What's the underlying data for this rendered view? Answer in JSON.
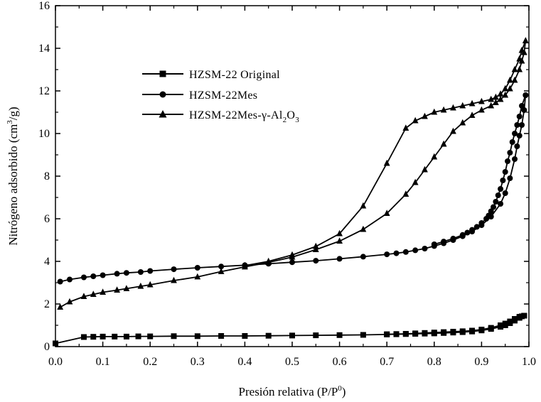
{
  "chart_data": {
    "type": "line",
    "xlabel": "Presión relativa (P/P",
    "xlabel_sup": "0",
    "xlabel_end": ")",
    "ylabel": "Nitrógeno adsorbido (cm",
    "ylabel_sup": "3",
    "ylabel_end": "/g)",
    "xlim": [
      0.0,
      1.0
    ],
    "ylim": [
      0,
      16
    ],
    "xticks": [
      "0.0",
      "0.1",
      "0.2",
      "0.3",
      "0.4",
      "0.5",
      "0.6",
      "0.7",
      "0.8",
      "0.9",
      "1.0"
    ],
    "yticks": [
      "0",
      "2",
      "4",
      "6",
      "8",
      "10",
      "12",
      "14",
      "16"
    ],
    "legend_position": "upper-left",
    "series": [
      {
        "name": "HZSM-22 Original",
        "legend_parts": [
          "HZSM-22 Original"
        ],
        "marker": "square",
        "adsorption": [
          [
            0.0,
            0.15
          ],
          [
            0.06,
            0.45
          ],
          [
            0.08,
            0.46
          ],
          [
            0.1,
            0.47
          ],
          [
            0.125,
            0.47
          ],
          [
            0.15,
            0.47
          ],
          [
            0.175,
            0.48
          ],
          [
            0.2,
            0.48
          ],
          [
            0.25,
            0.49
          ],
          [
            0.3,
            0.49
          ],
          [
            0.35,
            0.5
          ],
          [
            0.4,
            0.5
          ],
          [
            0.45,
            0.51
          ],
          [
            0.5,
            0.52
          ],
          [
            0.55,
            0.53
          ],
          [
            0.6,
            0.54
          ],
          [
            0.65,
            0.55
          ],
          [
            0.7,
            0.57
          ],
          [
            0.72,
            0.58
          ],
          [
            0.74,
            0.59
          ],
          [
            0.76,
            0.6
          ],
          [
            0.78,
            0.61
          ],
          [
            0.8,
            0.62
          ],
          [
            0.82,
            0.64
          ],
          [
            0.84,
            0.66
          ],
          [
            0.86,
            0.68
          ],
          [
            0.88,
            0.71
          ],
          [
            0.9,
            0.76
          ],
          [
            0.92,
            0.83
          ],
          [
            0.94,
            0.93
          ],
          [
            0.95,
            1.0
          ],
          [
            0.96,
            1.1
          ],
          [
            0.97,
            1.22
          ],
          [
            0.98,
            1.35
          ],
          [
            0.985,
            1.42
          ],
          [
            0.99,
            1.45
          ]
        ],
        "desorption": [
          [
            0.99,
            1.45
          ],
          [
            0.98,
            1.4
          ],
          [
            0.97,
            1.3
          ],
          [
            0.96,
            1.18
          ],
          [
            0.95,
            1.08
          ],
          [
            0.94,
            1.0
          ],
          [
            0.92,
            0.88
          ],
          [
            0.9,
            0.8
          ],
          [
            0.88,
            0.75
          ],
          [
            0.86,
            0.72
          ],
          [
            0.84,
            0.7
          ],
          [
            0.82,
            0.68
          ],
          [
            0.8,
            0.66
          ],
          [
            0.78,
            0.64
          ],
          [
            0.76,
            0.62
          ],
          [
            0.74,
            0.6
          ],
          [
            0.72,
            0.59
          ],
          [
            0.7,
            0.58
          ]
        ]
      },
      {
        "name": "HZSM-22Mes",
        "legend_parts": [
          "HZSM-22Mes"
        ],
        "marker": "circle",
        "adsorption": [
          [
            0.01,
            3.05
          ],
          [
            0.03,
            3.15
          ],
          [
            0.06,
            3.25
          ],
          [
            0.08,
            3.3
          ],
          [
            0.1,
            3.35
          ],
          [
            0.13,
            3.42
          ],
          [
            0.15,
            3.46
          ],
          [
            0.18,
            3.5
          ],
          [
            0.2,
            3.55
          ],
          [
            0.25,
            3.63
          ],
          [
            0.3,
            3.7
          ],
          [
            0.35,
            3.76
          ],
          [
            0.4,
            3.82
          ],
          [
            0.45,
            3.89
          ],
          [
            0.5,
            3.96
          ],
          [
            0.55,
            4.03
          ],
          [
            0.6,
            4.12
          ],
          [
            0.65,
            4.22
          ],
          [
            0.7,
            4.33
          ],
          [
            0.72,
            4.38
          ],
          [
            0.74,
            4.44
          ],
          [
            0.76,
            4.52
          ],
          [
            0.78,
            4.6
          ],
          [
            0.8,
            4.72
          ],
          [
            0.82,
            4.85
          ],
          [
            0.84,
            5.0
          ],
          [
            0.86,
            5.18
          ],
          [
            0.88,
            5.4
          ],
          [
            0.9,
            5.7
          ],
          [
            0.92,
            6.1
          ],
          [
            0.94,
            6.7
          ],
          [
            0.95,
            7.2
          ],
          [
            0.96,
            7.9
          ],
          [
            0.97,
            8.8
          ],
          [
            0.975,
            9.4
          ],
          [
            0.98,
            9.9
          ],
          [
            0.985,
            10.4
          ],
          [
            0.99,
            11.1
          ],
          [
            0.993,
            11.8
          ]
        ],
        "desorption": [
          [
            0.993,
            11.8
          ],
          [
            0.985,
            11.3
          ],
          [
            0.98,
            10.8
          ],
          [
            0.975,
            10.4
          ],
          [
            0.97,
            10.0
          ],
          [
            0.965,
            9.6
          ],
          [
            0.96,
            9.1
          ],
          [
            0.955,
            8.7
          ],
          [
            0.95,
            8.2
          ],
          [
            0.945,
            7.8
          ],
          [
            0.94,
            7.4
          ],
          [
            0.935,
            7.1
          ],
          [
            0.93,
            6.8
          ],
          [
            0.925,
            6.55
          ],
          [
            0.92,
            6.35
          ],
          [
            0.915,
            6.15
          ],
          [
            0.91,
            6.0
          ],
          [
            0.9,
            5.8
          ],
          [
            0.89,
            5.62
          ],
          [
            0.88,
            5.48
          ],
          [
            0.87,
            5.35
          ],
          [
            0.86,
            5.24
          ],
          [
            0.84,
            5.07
          ],
          [
            0.82,
            4.93
          ],
          [
            0.8,
            4.8
          ]
        ]
      },
      {
        "name": "HZSM-22Mes-γ-Al2O3",
        "legend_parts": [
          "HZSM-22Mes-γ-Al",
          "2",
          "O",
          "3"
        ],
        "marker": "triangle",
        "adsorption": [
          [
            0.01,
            1.85
          ],
          [
            0.03,
            2.1
          ],
          [
            0.06,
            2.35
          ],
          [
            0.08,
            2.45
          ],
          [
            0.1,
            2.55
          ],
          [
            0.13,
            2.65
          ],
          [
            0.15,
            2.72
          ],
          [
            0.18,
            2.83
          ],
          [
            0.2,
            2.9
          ],
          [
            0.25,
            3.1
          ],
          [
            0.3,
            3.27
          ],
          [
            0.35,
            3.52
          ],
          [
            0.4,
            3.74
          ],
          [
            0.45,
            3.95
          ],
          [
            0.5,
            4.2
          ],
          [
            0.55,
            4.55
          ],
          [
            0.6,
            4.95
          ],
          [
            0.65,
            5.5
          ],
          [
            0.7,
            6.25
          ],
          [
            0.74,
            7.15
          ],
          [
            0.76,
            7.7
          ],
          [
            0.78,
            8.3
          ],
          [
            0.8,
            8.9
          ],
          [
            0.82,
            9.5
          ],
          [
            0.84,
            10.1
          ],
          [
            0.86,
            10.5
          ],
          [
            0.88,
            10.85
          ],
          [
            0.9,
            11.1
          ],
          [
            0.92,
            11.3
          ],
          [
            0.93,
            11.45
          ],
          [
            0.94,
            11.6
          ],
          [
            0.95,
            11.8
          ],
          [
            0.96,
            12.1
          ],
          [
            0.97,
            12.5
          ],
          [
            0.98,
            13.0
          ],
          [
            0.985,
            13.4
          ],
          [
            0.99,
            13.8
          ],
          [
            0.993,
            14.35
          ]
        ],
        "desorption": [
          [
            0.993,
            14.35
          ],
          [
            0.985,
            13.9
          ],
          [
            0.98,
            13.5
          ],
          [
            0.97,
            13.0
          ],
          [
            0.96,
            12.5
          ],
          [
            0.95,
            12.1
          ],
          [
            0.94,
            11.85
          ],
          [
            0.93,
            11.7
          ],
          [
            0.92,
            11.6
          ],
          [
            0.9,
            11.5
          ],
          [
            0.88,
            11.4
          ],
          [
            0.86,
            11.3
          ],
          [
            0.84,
            11.2
          ],
          [
            0.82,
            11.1
          ],
          [
            0.8,
            11.0
          ],
          [
            0.78,
            10.8
          ],
          [
            0.76,
            10.6
          ],
          [
            0.74,
            10.25
          ],
          [
            0.7,
            8.6
          ],
          [
            0.65,
            6.6
          ],
          [
            0.6,
            5.3
          ],
          [
            0.55,
            4.7
          ],
          [
            0.5,
            4.3
          ],
          [
            0.45,
            4.0
          ],
          [
            0.4,
            3.8
          ]
        ]
      }
    ]
  }
}
